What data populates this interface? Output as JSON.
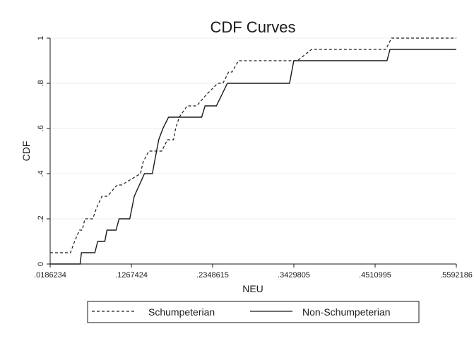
{
  "chart_data": {
    "type": "line",
    "title": "CDF Curves",
    "xlabel": "NEU",
    "ylabel": "CDF",
    "xlim": [
      0.0186234,
      0.5592186
    ],
    "ylim": [
      0,
      1
    ],
    "x_ticks": [
      0.0186234,
      0.1267424,
      0.2348615,
      0.3429805,
      0.4510995,
      0.5592186
    ],
    "x_tick_labels": [
      ".0186234",
      ".1267424",
      ".2348615",
      ".3429805",
      ".4510995",
      ".5592186"
    ],
    "y_ticks": [
      0,
      0.2,
      0.4,
      0.6,
      0.8,
      1
    ],
    "y_tick_labels": [
      "0",
      ".2",
      ".4",
      ".6",
      ".8",
      "1"
    ],
    "grid": true,
    "legend_position": "bottom",
    "series": [
      {
        "name": "Schumpeterian",
        "line_style": "dashed",
        "color": "#1a1a1a",
        "x": [
          0.0186,
          0.0456,
          0.0512,
          0.0576,
          0.0613,
          0.0649,
          0.0753,
          0.0806,
          0.0875,
          0.0949,
          0.1078,
          0.1138,
          0.1389,
          0.1422,
          0.1499,
          0.1672,
          0.1747,
          0.1828,
          0.1856,
          0.1905,
          0.201,
          0.2136,
          0.2266,
          0.2416,
          0.2486,
          0.2562,
          0.2607,
          0.2693,
          0.2806,
          0.3478,
          0.3665,
          0.4653,
          0.473,
          0.5592
        ],
        "y": [
          0.05,
          0.05,
          0.1,
          0.15,
          0.15,
          0.2,
          0.2,
          0.25,
          0.3,
          0.3,
          0.35,
          0.35,
          0.4,
          0.45,
          0.5,
          0.5,
          0.55,
          0.55,
          0.6,
          0.65,
          0.7,
          0.7,
          0.75,
          0.8,
          0.8,
          0.85,
          0.85,
          0.9,
          0.9,
          0.9,
          0.95,
          0.95,
          1.0,
          1.0
        ]
      },
      {
        "name": "Non-Schumpeterian",
        "line_style": "solid",
        "color": "#1a1a1a",
        "x": [
          0.0186,
          0.0585,
          0.0603,
          0.0781,
          0.0819,
          0.0914,
          0.0942,
          0.1063,
          0.1104,
          0.1246,
          0.1306,
          0.1441,
          0.1547,
          0.1574,
          0.1631,
          0.1687,
          0.1762,
          0.1828,
          0.2203,
          0.2248,
          0.2398,
          0.2545,
          0.2598,
          0.3372,
          0.3429,
          0.4669,
          0.4709,
          0.5592
        ],
        "y": [
          0.0,
          0.0,
          0.05,
          0.05,
          0.1,
          0.1,
          0.15,
          0.15,
          0.2,
          0.2,
          0.3,
          0.4,
          0.4,
          0.45,
          0.55,
          0.6,
          0.65,
          0.65,
          0.65,
          0.7,
          0.7,
          0.8,
          0.8,
          0.8,
          0.9,
          0.9,
          0.95,
          0.95
        ]
      }
    ]
  },
  "colors": {
    "background": "#ffffff",
    "grid": "#e8edf1",
    "axis": "#1a1a1a",
    "title": "#1a3c5a"
  }
}
